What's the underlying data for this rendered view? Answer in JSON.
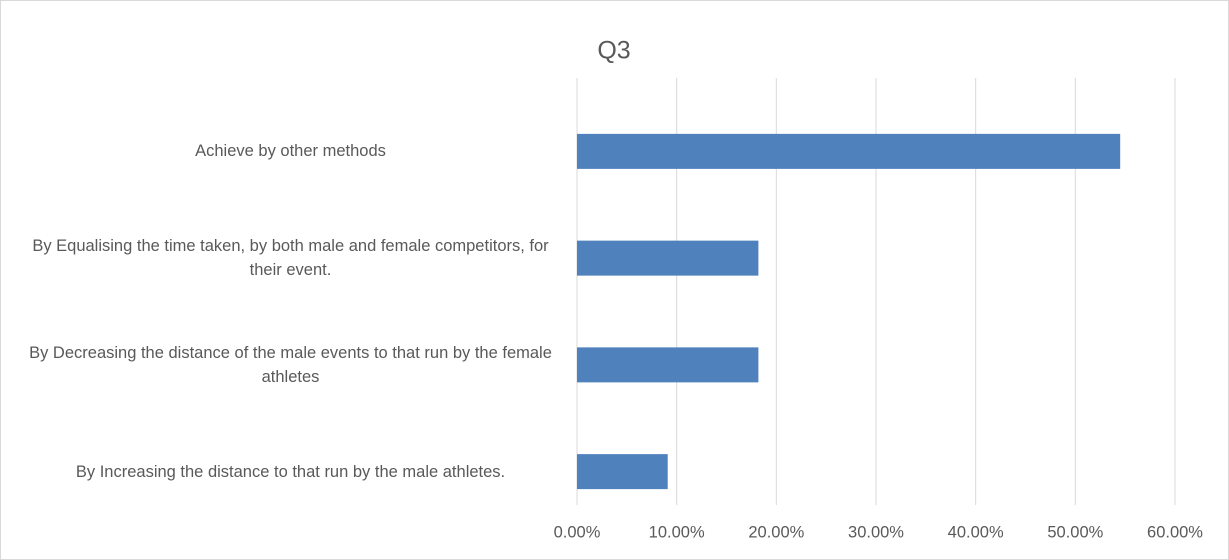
{
  "chart_data": {
    "type": "bar",
    "orientation": "horizontal",
    "title": "Q3",
    "categories": [
      "Achieve by other methods",
      "By Equalising the time taken, by both male and female competitors, for their event.",
      "By Decreasing the distance of the male events to that run by the female athletes",
      "By Increasing the distance to that run by the male athletes."
    ],
    "values": [
      54.5,
      18.2,
      18.2,
      9.1
    ],
    "color": "#4f81bd",
    "xlim": [
      0,
      60
    ],
    "xticks": [
      {
        "value": 0,
        "label": "0.00%"
      },
      {
        "value": 10,
        "label": "10.00%"
      },
      {
        "value": 20,
        "label": "20.00%"
      },
      {
        "value": 30,
        "label": "30.00%"
      },
      {
        "value": 40,
        "label": "40.00%"
      },
      {
        "value": 50,
        "label": "50.00%"
      },
      {
        "value": 60,
        "label": "60.00%"
      }
    ],
    "grid": true
  }
}
